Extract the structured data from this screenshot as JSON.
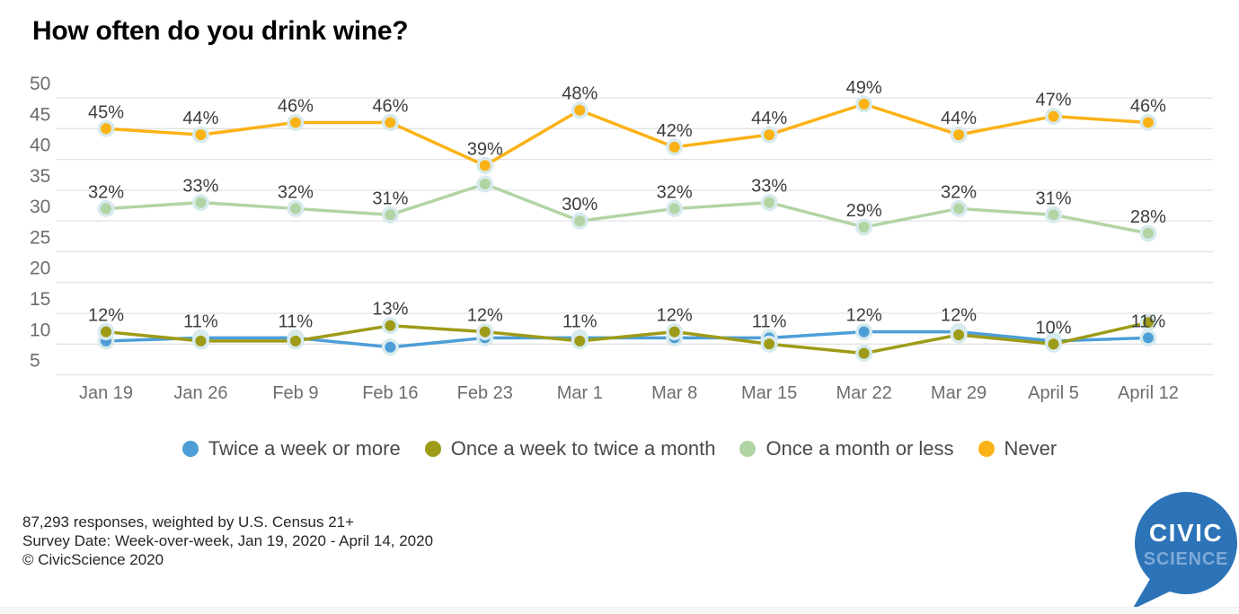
{
  "title": "How often do you drink wine?",
  "chart_data": {
    "type": "line",
    "title": "How often do you drink wine?",
    "x_labels": [
      "Jan 19",
      "Jan 26",
      "Feb 9",
      "Feb 16",
      "Feb 23",
      "Mar 1",
      "Mar 8",
      "Mar 15",
      "Mar 22",
      "Mar 29",
      "April 5",
      "April 12"
    ],
    "ylim": [
      5,
      50
    ],
    "ytick_step": 5,
    "grid": true,
    "legend_position": "bottom",
    "marker_halo_color": "#D7EAED",
    "gridline_color": "#e3e3e3",
    "draw_order": [
      2,
      3,
      0,
      1
    ],
    "series": [
      {
        "name": "Twice a week or more",
        "color": "#4D9ED7",
        "values": [
          10.5,
          11,
          11,
          9.5,
          11,
          11,
          11,
          11,
          12,
          12,
          10.5,
          11
        ],
        "labels": [
          null,
          "11%",
          "11%",
          null,
          null,
          "11%",
          null,
          "11%",
          "12%",
          "12%",
          null,
          "11%"
        ]
      },
      {
        "name": "Once a week to twice a month",
        "color": "#9D9B17",
        "values": [
          12,
          10.5,
          10.5,
          13,
          12,
          10.5,
          12,
          10,
          8.5,
          11.5,
          10,
          13.5
        ],
        "labels": [
          "12%",
          null,
          null,
          "13%",
          "12%",
          null,
          "12%",
          null,
          null,
          null,
          "10%",
          null
        ]
      },
      {
        "name": "Once a month or less",
        "color": "#B2D4A4",
        "values": [
          32,
          33,
          32,
          31,
          36,
          30,
          32,
          33,
          29,
          32,
          31,
          28
        ],
        "labels": [
          "32%",
          "33%",
          "32%",
          "31%",
          null,
          "30%",
          "32%",
          "33%",
          "29%",
          "32%",
          "31%",
          "28%"
        ]
      },
      {
        "name": "Never",
        "color": "#FBB216",
        "values": [
          45,
          44,
          46,
          46,
          39,
          48,
          42,
          44,
          49,
          44,
          47,
          46
        ],
        "labels": [
          "45%",
          "44%",
          "46%",
          "46%",
          "39%",
          "48%",
          "42%",
          "44%",
          "49%",
          "44%",
          "47%",
          "46%"
        ]
      }
    ]
  },
  "footer": {
    "line1": "87,293 responses, weighted by U.S. Census 21+",
    "line2": "Survey Date: Week-over-week, Jan 19, 2020 - April 14, 2020",
    "line3": "© CivicScience 2020"
  },
  "logo": {
    "line1": "CIVIC",
    "line2": "SCIENCE",
    "bubble_color": "#2C73B8",
    "line2_color": "#7EA9D6"
  }
}
